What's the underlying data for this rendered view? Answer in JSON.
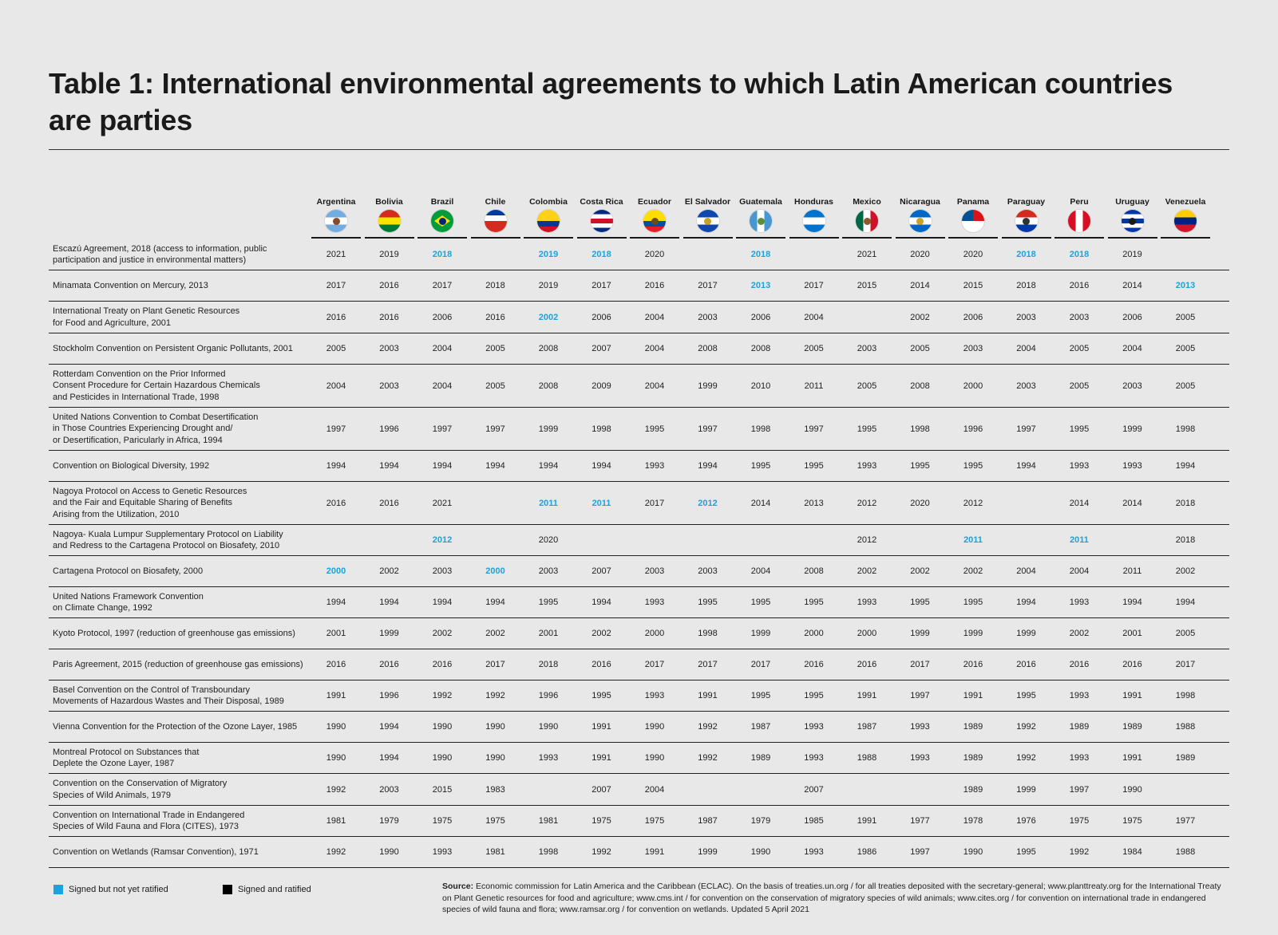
{
  "title": "Table 1: International environmental agreements to which Latin American countries are parties",
  "colors": {
    "signed_not_ratified": "#1aa3dd",
    "signed_and_ratified": "#000000"
  },
  "countries": [
    {
      "name": "Argentina",
      "flag": "flag-argentina-icon",
      "stripes": [
        "#74acdf",
        "#ffffff",
        "#74acdf"
      ],
      "emblem": "#8a4b2a"
    },
    {
      "name": "Bolivia",
      "flag": "flag-bolivia-icon",
      "stripes": [
        "#d52b1e",
        "#f9e300",
        "#007934"
      ],
      "emblem": ""
    },
    {
      "name": "Brazil",
      "flag": "flag-brazil-icon",
      "stripes": [
        "#009c3b",
        "#009c3b",
        "#009c3b"
      ],
      "emblem": "#002776",
      "diamond": "#ffdf00"
    },
    {
      "name": "Chile",
      "flag": "flag-chile-icon",
      "stripes": [
        "#0039a6",
        "#ffffff",
        "#d52b1e",
        "#d52b1e"
      ],
      "emblem": ""
    },
    {
      "name": "Colombia",
      "flag": "flag-colombia-icon",
      "stripes": [
        "#fcd116",
        "#fcd116",
        "#003893",
        "#ce1126"
      ],
      "emblem": ""
    },
    {
      "name": "Costa Rica",
      "flag": "flag-costa-rica-icon",
      "stripes": [
        "#002b7f",
        "#ffffff",
        "#ce1126",
        "#ffffff",
        "#002b7f"
      ],
      "emblem": ""
    },
    {
      "name": "Ecuador",
      "flag": "flag-ecuador-icon",
      "stripes": [
        "#ffdd00",
        "#ffdd00",
        "#034ea2",
        "#ed1c24"
      ],
      "emblem": "#6b4a1a"
    },
    {
      "name": "El Salvador",
      "flag": "flag-el-salvador-icon",
      "stripes": [
        "#0f47af",
        "#ffffff",
        "#0f47af"
      ],
      "emblem": "#c9a227"
    },
    {
      "name": "Guatemala",
      "flag": "flag-guatemala-icon",
      "stripes": [
        "#4997d0",
        "#ffffff",
        "#4997d0"
      ],
      "emblem": "#5c8f3a",
      "vertical": true
    },
    {
      "name": "Honduras",
      "flag": "flag-honduras-icon",
      "stripes": [
        "#0073cf",
        "#ffffff",
        "#0073cf"
      ],
      "emblem": ""
    },
    {
      "name": "Mexico",
      "flag": "flag-mexico-icon",
      "stripes": [
        "#006847",
        "#ffffff",
        "#ce1126"
      ],
      "emblem": "#8a5a2b",
      "vertical": true
    },
    {
      "name": "Nicaragua",
      "flag": "flag-nicaragua-icon",
      "stripes": [
        "#0067c6",
        "#ffffff",
        "#0067c6"
      ],
      "emblem": "#c9a227"
    },
    {
      "name": "Panama",
      "flag": "flag-panama-icon",
      "stripes": [
        "#ffffff",
        "#da121a",
        "#005293",
        "#ffffff"
      ],
      "emblem": "",
      "quad": true
    },
    {
      "name": "Paraguay",
      "flag": "flag-paraguay-icon",
      "stripes": [
        "#d52b1e",
        "#ffffff",
        "#0038a8"
      ],
      "emblem": "#333333"
    },
    {
      "name": "Peru",
      "flag": "flag-peru-icon",
      "stripes": [
        "#d91023",
        "#ffffff",
        "#d91023"
      ],
      "emblem": "",
      "vertical": true
    },
    {
      "name": "Uruguay",
      "flag": "flag-uruguay-icon",
      "stripes": [
        "#0038a8",
        "#ffffff",
        "#0038a8",
        "#ffffff",
        "#0038a8"
      ],
      "emblem": "#1a1a1a"
    },
    {
      "name": "Venezuela",
      "flag": "flag-venezuela-icon",
      "stripes": [
        "#ffcc00",
        "#00247d",
        "#cf142b"
      ],
      "emblem": ""
    }
  ],
  "agreements": [
    {
      "name": "Escazú Agreement, 2018 (access to information, public participation and justice in environmental matters)",
      "lines": [
        "Escazú Agreement, 2018 (access to information, public",
        "participation and justice in environmental matters)"
      ],
      "values": [
        "2021",
        "2019",
        "2018",
        "",
        "2019",
        "2018",
        "2020",
        "",
        "2018",
        "",
        "2021",
        "2020",
        "2020",
        "2018",
        "2018",
        "2019",
        ""
      ],
      "signed": [
        false,
        false,
        true,
        false,
        true,
        true,
        false,
        false,
        true,
        false,
        false,
        false,
        false,
        true,
        true,
        false,
        false
      ]
    },
    {
      "lines": [
        "Minamata Convention on Mercury, 2013"
      ],
      "values": [
        "2017",
        "2016",
        "2017",
        "2018",
        "2019",
        "2017",
        "2016",
        "2017",
        "2013",
        "2017",
        "2015",
        "2014",
        "2015",
        "2018",
        "2016",
        "2014",
        "2013"
      ],
      "signed": [
        false,
        false,
        false,
        false,
        false,
        false,
        false,
        false,
        true,
        false,
        false,
        false,
        false,
        false,
        false,
        false,
        true
      ]
    },
    {
      "lines": [
        "International Treaty on Plant Genetic Resources",
        "for Food and Agriculture, 2001"
      ],
      "values": [
        "2016",
        "2016",
        "2006",
        "2016",
        "2002",
        "2006",
        "2004",
        "2003",
        "2006",
        "2004",
        "",
        "2002",
        "2006",
        "2003",
        "2003",
        "2006",
        "2005"
      ],
      "signed": [
        false,
        false,
        false,
        false,
        true,
        false,
        false,
        false,
        false,
        false,
        false,
        false,
        false,
        false,
        false,
        false,
        false
      ]
    },
    {
      "lines": [
        "Stockholm Convention on Persistent Organic Pollutants, 2001"
      ],
      "values": [
        "2005",
        "2003",
        "2004",
        "2005",
        "2008",
        "2007",
        "2004",
        "2008",
        "2008",
        "2005",
        "2003",
        "2005",
        "2003",
        "2004",
        "2005",
        "2004",
        "2005"
      ],
      "signed": [
        false,
        false,
        false,
        false,
        false,
        false,
        false,
        false,
        false,
        false,
        false,
        false,
        false,
        false,
        false,
        false,
        false
      ]
    },
    {
      "lines": [
        "Rotterdam Convention on the Prior Informed",
        "Consent Procedure for Certain Hazardous Chemicals",
        "and Pesticides in International Trade, 1998"
      ],
      "values": [
        "2004",
        "2003",
        "2004",
        "2005",
        "2008",
        "2009",
        "2004",
        "1999",
        "2010",
        "2011",
        "2005",
        "2008",
        "2000",
        "2003",
        "2005",
        "2003",
        "2005"
      ],
      "signed": [
        false,
        false,
        false,
        false,
        false,
        false,
        false,
        false,
        false,
        false,
        false,
        false,
        false,
        false,
        false,
        false,
        false
      ]
    },
    {
      "lines": [
        "United Nations Convention to Combat Desertification",
        "in Those Countries Experiencing Drought and/",
        "or Desertification, Paricularly in Africa, 1994"
      ],
      "values": [
        "1997",
        "1996",
        "1997",
        "1997",
        "1999",
        "1998",
        "1995",
        "1997",
        "1998",
        "1997",
        "1995",
        "1998",
        "1996",
        "1997",
        "1995",
        "1999",
        "1998"
      ],
      "signed": [
        false,
        false,
        false,
        false,
        false,
        false,
        false,
        false,
        false,
        false,
        false,
        false,
        false,
        false,
        false,
        false,
        false
      ]
    },
    {
      "lines": [
        "Convention on Biological Diversity, 1992"
      ],
      "values": [
        "1994",
        "1994",
        "1994",
        "1994",
        "1994",
        "1994",
        "1993",
        "1994",
        "1995",
        "1995",
        "1993",
        "1995",
        "1995",
        "1994",
        "1993",
        "1993",
        "1994"
      ],
      "signed": [
        false,
        false,
        false,
        false,
        false,
        false,
        false,
        false,
        false,
        false,
        false,
        false,
        false,
        false,
        false,
        false,
        false
      ]
    },
    {
      "lines": [
        "Nagoya Protocol on Access to Genetic Resources",
        "and the Fair and Equitable Sharing of Benefits",
        "Arising from the Utilization, 2010"
      ],
      "values": [
        "2016",
        "2016",
        "2021",
        "",
        "2011",
        "2011",
        "2017",
        "2012",
        "2014",
        "2013",
        "2012",
        "2020",
        "2012",
        "",
        "2014",
        "2014",
        "2018"
      ],
      "signed": [
        false,
        false,
        false,
        false,
        true,
        true,
        false,
        true,
        false,
        false,
        false,
        false,
        false,
        false,
        false,
        false,
        false
      ]
    },
    {
      "lines": [
        "Nagoya- Kuala Lumpur Supplementary Protocol on Liability",
        "and Redress to the Cartagena Protocol on Biosafety, 2010"
      ],
      "values": [
        "",
        "",
        "2012",
        "",
        "2020",
        "",
        "",
        "",
        "",
        "",
        "2012",
        "",
        "2011",
        "",
        "2011",
        "",
        "2018"
      ],
      "signed": [
        false,
        false,
        true,
        false,
        false,
        false,
        false,
        false,
        false,
        false,
        false,
        false,
        true,
        false,
        true,
        false,
        false
      ]
    },
    {
      "lines": [
        "Cartagena Protocol on Biosafety, 2000"
      ],
      "values": [
        "2000",
        "2002",
        "2003",
        "2000",
        "2003",
        "2007",
        "2003",
        "2003",
        "2004",
        "2008",
        "2002",
        "2002",
        "2002",
        "2004",
        "2004",
        "2011",
        "2002"
      ],
      "signed": [
        true,
        false,
        false,
        true,
        false,
        false,
        false,
        false,
        false,
        false,
        false,
        false,
        false,
        false,
        false,
        false,
        false
      ]
    },
    {
      "lines": [
        "United Nations Framework Convention",
        "on Climate Change, 1992"
      ],
      "values": [
        "1994",
        "1994",
        "1994",
        "1994",
        "1995",
        "1994",
        "1993",
        "1995",
        "1995",
        "1995",
        "1993",
        "1995",
        "1995",
        "1994",
        "1993",
        "1994",
        "1994"
      ],
      "signed": [
        false,
        false,
        false,
        false,
        false,
        false,
        false,
        false,
        false,
        false,
        false,
        false,
        false,
        false,
        false,
        false,
        false
      ]
    },
    {
      "lines": [
        "Kyoto Protocol, 1997 (reduction of greenhouse gas emissions)"
      ],
      "values": [
        "2001",
        "1999",
        "2002",
        "2002",
        "2001",
        "2002",
        "2000",
        "1998",
        "1999",
        "2000",
        "2000",
        "1999",
        "1999",
        "1999",
        "2002",
        "2001",
        "2005"
      ],
      "signed": [
        false,
        false,
        false,
        false,
        false,
        false,
        false,
        false,
        false,
        false,
        false,
        false,
        false,
        false,
        false,
        false,
        false
      ]
    },
    {
      "lines": [
        "Paris Agreement, 2015 (reduction of greenhouse gas emissions)"
      ],
      "values": [
        "2016",
        "2016",
        "2016",
        "2017",
        "2018",
        "2016",
        "2017",
        "2017",
        "2017",
        "2016",
        "2016",
        "2017",
        "2016",
        "2016",
        "2016",
        "2016",
        "2017"
      ],
      "signed": [
        false,
        false,
        false,
        false,
        false,
        false,
        false,
        false,
        false,
        false,
        false,
        false,
        false,
        false,
        false,
        false,
        false
      ]
    },
    {
      "lines": [
        "Basel Convention on the Control of Transboundary",
        "Movements of Hazardous Wastes and Their Disposal, 1989"
      ],
      "values": [
        "1991",
        "1996",
        "1992",
        "1992",
        "1996",
        "1995",
        "1993",
        "1991",
        "1995",
        "1995",
        "1991",
        "1997",
        "1991",
        "1995",
        "1993",
        "1991",
        "1998"
      ],
      "signed": [
        false,
        false,
        false,
        false,
        false,
        false,
        false,
        false,
        false,
        false,
        false,
        false,
        false,
        false,
        false,
        false,
        false
      ]
    },
    {
      "lines": [
        "Vienna Convention for the Protection of the Ozone Layer, 1985"
      ],
      "values": [
        "1990",
        "1994",
        "1990",
        "1990",
        "1990",
        "1991",
        "1990",
        "1992",
        "1987",
        "1993",
        "1987",
        "1993",
        "1989",
        "1992",
        "1989",
        "1989",
        "1988"
      ],
      "signed": [
        false,
        false,
        false,
        false,
        false,
        false,
        false,
        false,
        false,
        false,
        false,
        false,
        false,
        false,
        false,
        false,
        false
      ]
    },
    {
      "lines": [
        "Montreal Protocol on Substances that",
        "Deplete the Ozone Layer, 1987"
      ],
      "values": [
        "1990",
        "1994",
        "1990",
        "1990",
        "1993",
        "1991",
        "1990",
        "1992",
        "1989",
        "1993",
        "1988",
        "1993",
        "1989",
        "1992",
        "1993",
        "1991",
        "1989"
      ],
      "signed": [
        false,
        false,
        false,
        false,
        false,
        false,
        false,
        false,
        false,
        false,
        false,
        false,
        false,
        false,
        false,
        false,
        false
      ]
    },
    {
      "lines": [
        "Convention on the Conservation of Migratory",
        "Species of Wild Animals, 1979"
      ],
      "values": [
        "1992",
        "2003",
        "2015",
        "1983",
        "",
        "2007",
        "2004",
        "",
        "",
        "2007",
        "",
        "",
        "1989",
        "1999",
        "1997",
        "1990",
        ""
      ],
      "signed": [
        false,
        false,
        false,
        false,
        false,
        false,
        false,
        false,
        false,
        false,
        false,
        false,
        false,
        false,
        false,
        false,
        false
      ]
    },
    {
      "lines": [
        "Convention on International Trade in Endangered",
        "Species of Wild Fauna and Flora (CITES), 1973"
      ],
      "values": [
        "1981",
        "1979",
        "1975",
        "1975",
        "1981",
        "1975",
        "1975",
        "1987",
        "1979",
        "1985",
        "1991",
        "1977",
        "1978",
        "1976",
        "1975",
        "1975",
        "1977"
      ],
      "signed": [
        false,
        false,
        false,
        false,
        false,
        false,
        false,
        false,
        false,
        false,
        false,
        false,
        false,
        false,
        false,
        false,
        false
      ]
    },
    {
      "lines": [
        "Convention on Wetlands (Ramsar Convention), 1971"
      ],
      "values": [
        "1992",
        "1990",
        "1993",
        "1981",
        "1998",
        "1992",
        "1991",
        "1999",
        "1990",
        "1993",
        "1986",
        "1997",
        "1990",
        "1995",
        "1992",
        "1984",
        "1988"
      ],
      "signed": [
        false,
        false,
        false,
        false,
        false,
        false,
        false,
        false,
        false,
        false,
        false,
        false,
        false,
        false,
        false,
        false,
        false
      ]
    }
  ],
  "legend": {
    "signed_not_ratified": "Signed but not yet ratified",
    "signed_and_ratified": "Signed and ratified"
  },
  "source": {
    "label": "Source:",
    "text": "Economic commission for Latin America and the Caribbean (ECLAC). On the basis of treaties.un.org / for all treaties deposited with the secretary-general; www.planttreaty.org for the International Treaty on Plant Genetic resources for food and agriculture; www.cms.int / for convention on the conservation of migratory species of wild animals; www.cites.org / for convention on international trade in endangered species of wild fauna and flora; www.ramsar.org / for convention on wetlands. Updated 5 April 2021"
  }
}
